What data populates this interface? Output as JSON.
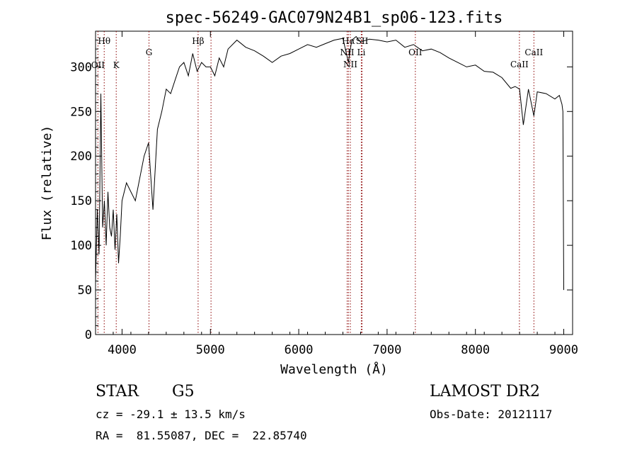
{
  "chart_data": {
    "type": "line",
    "title": "spec-56249-GAC079N24B1_sp06-123.fits",
    "xlabel": "Wavelength (Å)",
    "ylabel": "Flux (relative)",
    "xlim": [
      3700,
      9100
    ],
    "ylim": [
      0,
      340
    ],
    "xticks": [
      4000,
      5000,
      6000,
      7000,
      8000,
      9000
    ],
    "yticks": [
      0,
      50,
      100,
      150,
      200,
      250,
      300
    ],
    "grid": false,
    "line_color": "#000000",
    "marker_color": "#8b0000",
    "spectrum": {
      "x": [
        3700,
        3720,
        3740,
        3760,
        3780,
        3800,
        3820,
        3840,
        3860,
        3880,
        3900,
        3920,
        3940,
        3960,
        3980,
        4000,
        4050,
        4100,
        4150,
        4200,
        4250,
        4300,
        4350,
        4400,
        4450,
        4500,
        4550,
        4600,
        4650,
        4700,
        4750,
        4800,
        4850,
        4900,
        4950,
        5000,
        5050,
        5100,
        5150,
        5200,
        5300,
        5400,
        5500,
        5600,
        5700,
        5800,
        5900,
        6000,
        6100,
        6200,
        6300,
        6400,
        6500,
        6563,
        6600,
        6650,
        6700,
        6800,
        6900,
        7000,
        7100,
        7200,
        7300,
        7400,
        7500,
        7600,
        7700,
        7800,
        7900,
        8000,
        8100,
        8200,
        8300,
        8400,
        8450,
        8500,
        8542,
        8600,
        8662,
        8700,
        8800,
        8900,
        8950,
        8980,
        8990,
        9000
      ],
      "y": [
        60,
        140,
        90,
        270,
        120,
        150,
        100,
        160,
        120,
        110,
        140,
        95,
        135,
        80,
        110,
        150,
        170,
        160,
        150,
        175,
        200,
        215,
        140,
        230,
        250,
        275,
        270,
        285,
        300,
        305,
        290,
        315,
        295,
        305,
        300,
        300,
        290,
        310,
        300,
        320,
        330,
        322,
        318,
        312,
        305,
        312,
        315,
        320,
        325,
        322,
        326,
        330,
        332,
        305,
        330,
        334,
        328,
        331,
        330,
        328,
        330,
        322,
        325,
        318,
        320,
        316,
        310,
        305,
        300,
        302,
        295,
        294,
        288,
        276,
        278,
        275,
        235,
        275,
        245,
        272,
        270,
        264,
        268,
        258,
        250,
        50
      ]
    },
    "line_markers": [
      {
        "label": "Hθ",
        "wavelength": 3798,
        "label_row": "top"
      },
      {
        "label": "OII",
        "wavelength": 3727,
        "label_row": "upper"
      },
      {
        "label": "K",
        "wavelength": 3934,
        "label_row": "upper"
      },
      {
        "label": "G",
        "wavelength": 4305,
        "label_row": "middle"
      },
      {
        "label": "Hβ",
        "wavelength": 4861,
        "label_row": "top"
      },
      {
        "label": "",
        "wavelength": 5007,
        "label_row": "none"
      },
      {
        "label": "NII",
        "wavelength": 6548,
        "label_row": "middle"
      },
      {
        "label": "Hα",
        "wavelength": 6563,
        "label_row": "top"
      },
      {
        "label": "NII",
        "wavelength": 6584,
        "label_row": "lower"
      },
      {
        "label": "SII",
        "wavelength": 6717,
        "label_row": "top"
      },
      {
        "label": "Li",
        "wavelength": 6708,
        "label_row": "middle"
      },
      {
        "label": "OII",
        "wavelength": 7320,
        "label_row": "middle"
      },
      {
        "label": "CaII",
        "wavelength": 8498,
        "label_row": "lower"
      },
      {
        "label": "CaII",
        "wavelength": 8662,
        "label_row": "middle"
      }
    ]
  },
  "footer": {
    "object_class": "STAR",
    "subclass": "G5",
    "survey": "LAMOST DR2",
    "redshift": "cz = -29.1 ± 13.5 km/s",
    "obs_date": "Obs-Date: 20121117",
    "coords": "RA =  81.55087, DEC =  22.85740"
  }
}
